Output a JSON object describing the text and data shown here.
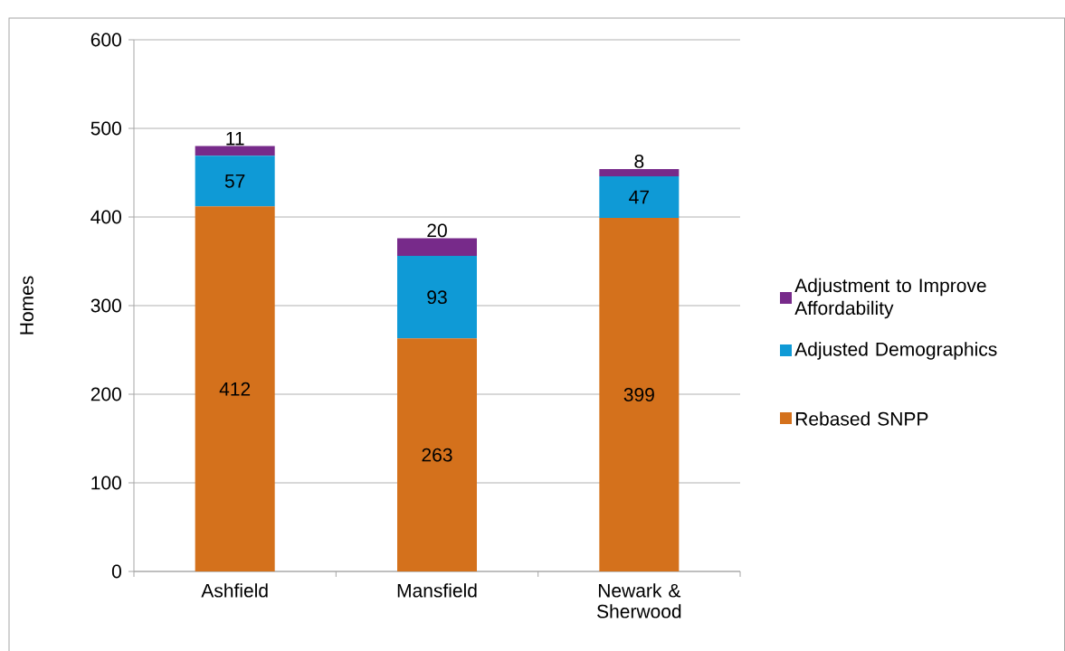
{
  "chart_data": {
    "type": "bar",
    "stacked": true,
    "ylabel": "Homes",
    "categories": [
      "Ashfield",
      "Mansfield",
      "Newark & Sherwood"
    ],
    "series": [
      {
        "name": "Rebased SNPP",
        "color": "#d4711c",
        "values": [
          412,
          263,
          399
        ]
      },
      {
        "name": "Adjusted Demographics",
        "color": "#0f9ad6",
        "values": [
          57,
          93,
          47
        ]
      },
      {
        "name": "Adjustment to Improve Affordability",
        "color": "#772a8a",
        "values": [
          11,
          20,
          8
        ]
      }
    ],
    "ylim": [
      0,
      600
    ],
    "yticks": [
      0,
      100,
      200,
      300,
      400,
      500,
      600
    ],
    "grid": "y",
    "legend": "right",
    "data_labels": true
  }
}
